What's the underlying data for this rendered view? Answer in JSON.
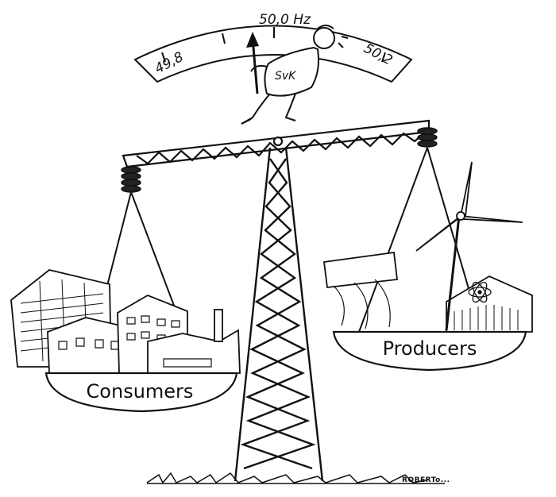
{
  "gauge": {
    "left_label": "49,8",
    "center_label": "50,0 Hz",
    "right_label": "50,2"
  },
  "operator": {
    "shirt_text": "SvK"
  },
  "pans": {
    "left_label": "Consumers",
    "right_label": "Producers"
  },
  "signature": "ROBERTo..."
}
